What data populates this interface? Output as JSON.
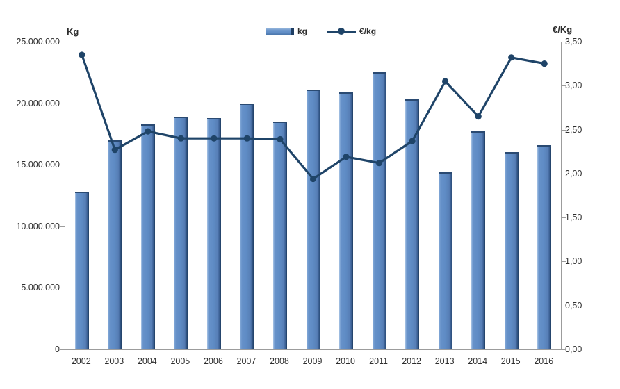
{
  "chart": {
    "left_axis_title": "Kg",
    "right_axis_title": "€/Kg",
    "left_tick_labels": [
      "25.000.000",
      "20.000.000",
      "15.000.000",
      "10.000.000",
      "5.000.000",
      "0"
    ],
    "right_tick_labels": [
      "3,50",
      "3,00",
      "2,50",
      "2,00",
      "1,50",
      "1,00",
      "0,50",
      "0,00"
    ]
  },
  "legend": {
    "items": [
      {
        "label": "kg",
        "series_type": "bar"
      },
      {
        "label": "€/kg",
        "series_type": "line"
      }
    ]
  },
  "chart_data": {
    "type": "bar",
    "subtype": "combo-bar-line-dual-axis",
    "categories": [
      "2002",
      "2003",
      "2004",
      "2005",
      "2006",
      "2007",
      "2008",
      "2009",
      "2010",
      "2011",
      "2012",
      "2013",
      "2014",
      "2015",
      "2016"
    ],
    "series": [
      {
        "name": "kg",
        "chart_type": "bar",
        "axis": "left",
        "values": [
          12800000,
          17000000,
          18300000,
          18900000,
          18800000,
          20000000,
          18500000,
          21100000,
          20900000,
          22500000,
          20300000,
          14400000,
          17700000,
          16000000,
          16600000
        ]
      },
      {
        "name": "€/kg",
        "chart_type": "line",
        "axis": "right",
        "values": [
          3.35,
          2.27,
          2.48,
          2.4,
          2.4,
          2.4,
          2.39,
          1.94,
          2.19,
          2.12,
          2.37,
          3.05,
          2.65,
          3.32,
          3.25
        ]
      }
    ],
    "title": "",
    "xlabel": "",
    "left_axis": {
      "title": "Kg",
      "min": 0,
      "max": 25000000,
      "step": 5000000
    },
    "right_axis": {
      "title": "€/Kg",
      "min": 0,
      "max": 3.5,
      "step": 0.5
    },
    "legend_position": "top-center",
    "grid": false
  },
  "colors": {
    "bar_body": "#5f8cc5",
    "bar_shadow": "#1f3e63",
    "line": "#1f4468",
    "axis_line": "#9c9c9c",
    "text": "#2e2e2e"
  }
}
